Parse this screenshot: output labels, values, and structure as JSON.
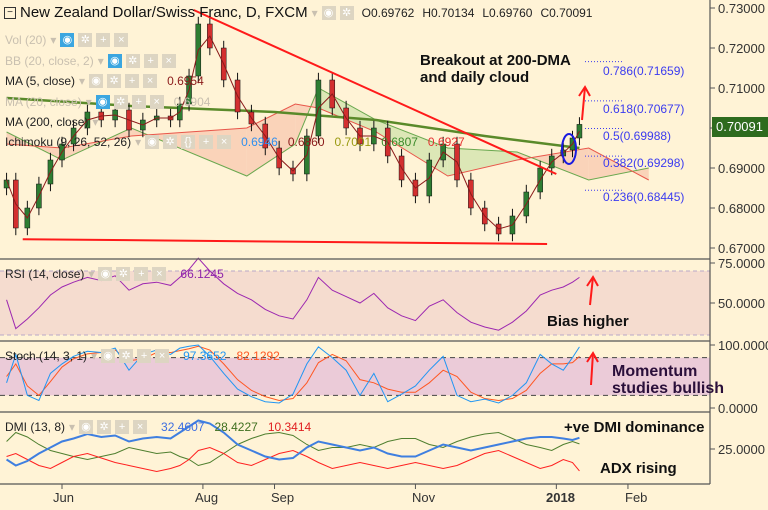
{
  "header": {
    "title": "New Zealand Dollar/Swiss Franc, D, FXCM",
    "ohlc": {
      "open": "O0.69762",
      "high": "H0.70134",
      "low": "L0.69760",
      "close": "C0.70091"
    }
  },
  "indicators": {
    "vol": {
      "label": "Vol (20)"
    },
    "bb": {
      "label": "BB (20, close, 2)"
    },
    "ma5": {
      "label": "MA (5, close)",
      "value": "0.6954"
    },
    "ma20": {
      "label": "MA (20, close)",
      "value": "0.6904"
    },
    "ma200": {
      "label": "MA (200, close)"
    },
    "ichimoku": {
      "label": "Ichimoku (9, 26, 52, 26)",
      "values": [
        "0.6946",
        "0.6860",
        "0.7001",
        "0.6807",
        "0.6927"
      ]
    },
    "rsi": {
      "label": "RSI (14, close)",
      "value": "66.1245"
    },
    "stoch": {
      "label": "Stoch (14, 3, 1)",
      "k": "97.3652",
      "d": "82.1292"
    },
    "dmi": {
      "label": "DMI (13, 8)",
      "plus": "32.4607",
      "minus": "28.4227",
      "adx": "10.3414"
    }
  },
  "annotations": {
    "breakout": [
      "Breakout at 200-DMA",
      "and daily cloud"
    ],
    "rsi_note": "Bias higher",
    "stoch_note": [
      "Momentum",
      "studies bullish"
    ],
    "dmi_note": "+ve DMI dominance",
    "adx_note": "ADX rising"
  },
  "fib_levels": [
    {
      "label": "0.786(0.71659)",
      "value": 0.71659
    },
    {
      "label": "0.618(0.70677)",
      "value": 0.70677
    },
    {
      "label": "0.5(0.69988)",
      "value": 0.69988
    },
    {
      "label": "0.382(0.69298)",
      "value": 0.69298
    },
    {
      "label": "0.236(0.68445)",
      "value": 0.68445
    }
  ],
  "last_price": "0.70091",
  "colors": {
    "up": "#2e7d32",
    "down": "#d32f2f",
    "ma200": "#5a8a2a",
    "trend": "#ff1a1a",
    "fib": "#3b3bf0",
    "rsi": "#9c27b0",
    "stochK": "#2196f3",
    "stochD": "#ff5722",
    "dmiPlus": "#3f7fe0",
    "dmiMinus": "#4f7f2f",
    "adx": "#ff2020",
    "cloudBull": "#d6e4b0",
    "cloudBear": "#f9cdb4",
    "lastBg": "#2e6b1e"
  },
  "chart_data": {
    "type": "candlestick",
    "price_axis": {
      "ticks": [
        "0.73000",
        "0.72000",
        "0.71000",
        "0.70000",
        "0.69000",
        "0.68000",
        "0.67000"
      ],
      "range": [
        0.6665,
        0.732
      ]
    },
    "time_axis": {
      "ticks": [
        {
          "label": "Jun",
          "date": "2017-06-01"
        },
        {
          "label": "Aug",
          "date": "2017-08-01"
        },
        {
          "label": "Sep",
          "date": "2017-09-01"
        },
        {
          "label": "Nov",
          "date": "2017-11-01"
        },
        {
          "label": "2018",
          "date": "2018-01-01"
        },
        {
          "label": "Feb",
          "date": "2018-02-01"
        }
      ]
    },
    "dates": [
      "2017-05-08",
      "2017-05-12",
      "2017-05-17",
      "2017-05-22",
      "2017-05-27",
      "2017-06-01",
      "2017-06-06",
      "2017-06-12",
      "2017-06-18",
      "2017-06-24",
      "2017-06-30",
      "2017-07-06",
      "2017-07-12",
      "2017-07-18",
      "2017-07-22",
      "2017-07-26",
      "2017-07-30",
      "2017-08-04",
      "2017-08-10",
      "2017-08-16",
      "2017-08-22",
      "2017-08-28",
      "2017-09-03",
      "2017-09-09",
      "2017-09-15",
      "2017-09-20",
      "2017-09-26",
      "2017-10-02",
      "2017-10-08",
      "2017-10-14",
      "2017-10-20",
      "2017-10-26",
      "2017-11-01",
      "2017-11-07",
      "2017-11-13",
      "2017-11-19",
      "2017-11-25",
      "2017-12-01",
      "2017-12-07",
      "2017-12-13",
      "2017-12-19",
      "2017-12-25",
      "2017-12-30",
      "2018-01-04",
      "2018-01-08",
      "2018-01-11"
    ],
    "close": [
      0.687,
      0.675,
      0.68,
      0.686,
      0.692,
      0.696,
      0.7,
      0.704,
      0.702,
      0.7045,
      0.6995,
      0.702,
      0.703,
      0.702,
      0.706,
      0.713,
      0.726,
      0.72,
      0.712,
      0.704,
      0.701,
      0.695,
      0.69,
      0.6885,
      0.698,
      0.712,
      0.705,
      0.7,
      0.696,
      0.7,
      0.693,
      0.687,
      0.683,
      0.692,
      0.696,
      0.687,
      0.68,
      0.676,
      0.6735,
      0.678,
      0.684,
      0.69,
      0.693,
      0.6945,
      0.6975,
      0.7009
    ],
    "ma200": [
      [
        "2017-05-08",
        0.7075
      ],
      [
        "2017-07-01",
        0.7055
      ],
      [
        "2017-09-01",
        0.704
      ],
      [
        "2017-10-15",
        0.702
      ],
      [
        "2017-12-01",
        0.698
      ],
      [
        "2018-01-11",
        0.695
      ]
    ],
    "cloud": {
      "spanA": [
        [
          "2017-05-08",
          0.699
        ],
        [
          "2017-06-01",
          0.692
        ],
        [
          "2017-07-01",
          0.7
        ],
        [
          "2017-08-20",
          0.688
        ],
        [
          "2017-09-10",
          0.696
        ],
        [
          "2017-09-20",
          0.71
        ],
        [
          "2017-10-15",
          0.702
        ],
        [
          "2017-11-15",
          0.695
        ],
        [
          "2017-12-15",
          0.694
        ],
        [
          "2018-01-15",
          0.687
        ],
        [
          "2018-02-10",
          0.69
        ]
      ],
      "spanB": [
        [
          "2017-05-08",
          0.696
        ],
        [
          "2017-06-01",
          0.695
        ],
        [
          "2017-07-01",
          0.698
        ],
        [
          "2017-08-20",
          0.7
        ],
        [
          "2017-09-10",
          0.706
        ],
        [
          "2017-09-20",
          0.705
        ],
        [
          "2017-10-15",
          0.699
        ],
        [
          "2017-11-15",
          0.688
        ],
        [
          "2017-12-15",
          0.692
        ],
        [
          "2018-01-15",
          0.695
        ],
        [
          "2018-02-10",
          0.687
        ]
      ]
    },
    "trendlines": [
      {
        "from": [
          "2017-07-28",
          0.7295
        ],
        "to": [
          "2018-01-01",
          0.6885
        ]
      },
      {
        "from": [
          "2017-05-15",
          0.6722
        ],
        "to": [
          "2017-12-28",
          0.671
        ]
      }
    ],
    "rsi": {
      "axis": [
        "75.0000",
        "50.0000"
      ],
      "bands": [
        70,
        30
      ],
      "values": [
        52,
        34,
        40,
        47,
        55,
        60,
        63,
        66,
        64,
        67,
        58,
        62,
        63,
        61,
        66,
        71,
        78,
        70,
        62,
        56,
        52,
        46,
        42,
        40,
        52,
        66,
        58,
        54,
        50,
        56,
        47,
        42,
        39,
        48,
        52,
        44,
        38,
        35,
        33,
        38,
        45,
        55,
        58,
        60,
        63,
        66
      ]
    },
    "stoch": {
      "axis": [
        "100.0000",
        "0.0000"
      ],
      "bands": [
        80,
        20
      ],
      "k": [
        40,
        85,
        20,
        12,
        55,
        70,
        82,
        90,
        88,
        95,
        60,
        85,
        92,
        85,
        95,
        98,
        100,
        82,
        55,
        30,
        18,
        10,
        8,
        22,
        70,
        97,
        80,
        60,
        20,
        55,
        10,
        22,
        35,
        60,
        82,
        20,
        10,
        14,
        8,
        20,
        40,
        85,
        70,
        60,
        80,
        97
      ],
      "d": [
        50,
        70,
        35,
        20,
        42,
        65,
        78,
        86,
        88,
        92,
        75,
        78,
        88,
        88,
        91,
        94,
        98,
        92,
        70,
        45,
        28,
        18,
        12,
        15,
        40,
        72,
        85,
        75,
        45,
        40,
        30,
        25,
        25,
        40,
        60,
        50,
        25,
        15,
        12,
        15,
        28,
        55,
        70,
        70,
        72,
        82
      ]
    },
    "dmi": {
      "axis": [
        "25.0000"
      ],
      "plus": [
        18,
        14,
        17,
        22,
        26,
        30,
        32,
        35,
        33,
        34,
        30,
        32,
        33,
        32,
        36,
        40,
        44,
        42,
        36,
        28,
        24,
        20,
        18,
        19,
        26,
        30,
        28,
        26,
        24,
        26,
        22,
        20,
        20,
        24,
        28,
        26,
        24,
        26,
        28,
        30,
        32,
        33,
        33,
        32,
        31,
        32.46
      ],
      "minus": [
        30,
        36,
        33,
        28,
        24,
        22,
        20,
        18,
        20,
        22,
        26,
        24,
        22,
        23,
        20,
        18,
        14,
        16,
        22,
        28,
        32,
        35,
        36,
        34,
        28,
        24,
        26,
        26,
        28,
        26,
        30,
        32,
        32,
        28,
        26,
        30,
        33,
        35,
        36,
        32,
        28,
        26,
        24,
        28,
        30,
        28.42
      ],
      "adx": [
        20,
        22,
        18,
        14,
        12,
        16,
        20,
        22,
        19,
        16,
        14,
        12,
        10,
        12,
        14,
        18,
        24,
        26,
        22,
        16,
        14,
        18,
        22,
        24,
        20,
        16,
        12,
        14,
        16,
        14,
        12,
        14,
        16,
        14,
        12,
        14,
        18,
        22,
        24,
        20,
        16,
        12,
        14,
        18,
        16,
        10.34
      ]
    }
  }
}
